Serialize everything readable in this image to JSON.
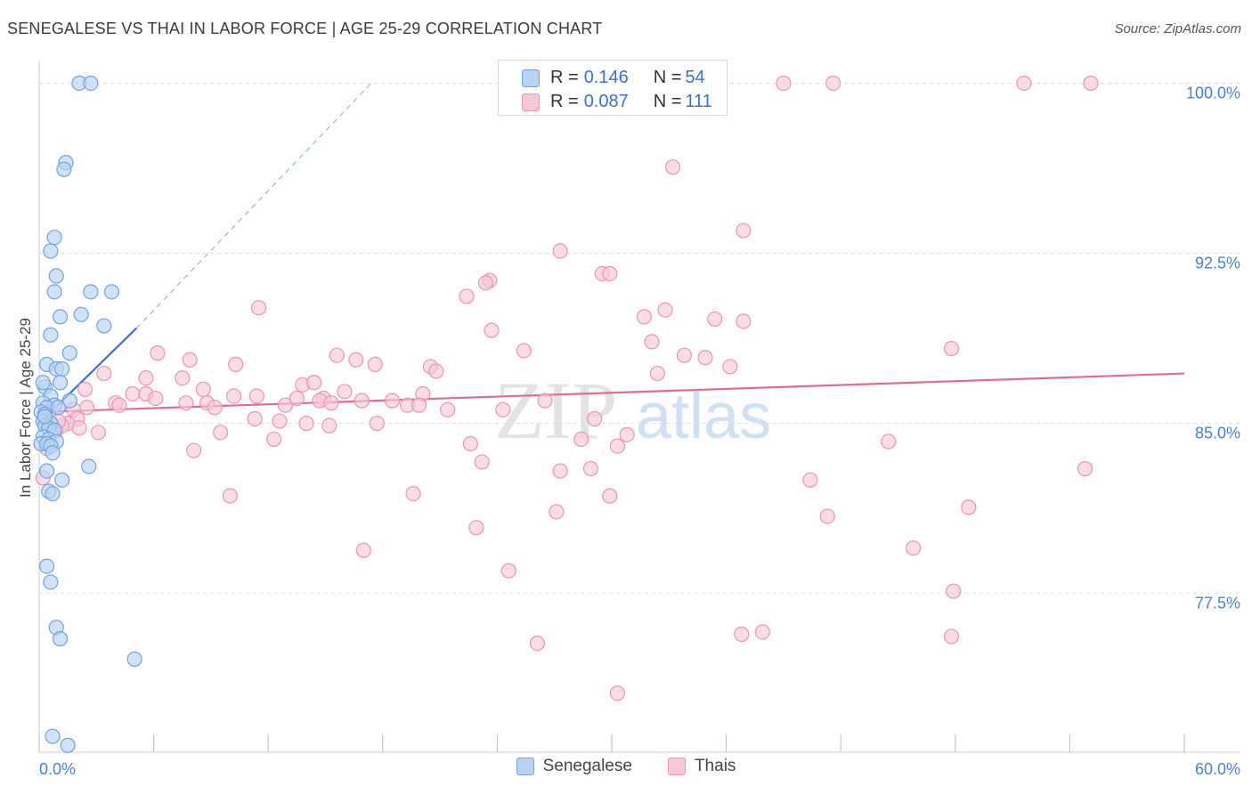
{
  "title": "SENEGALESE VS THAI IN LABOR FORCE | AGE 25-29 CORRELATION CHART",
  "source": "Source: ZipAtlas.com",
  "watermark": {
    "zip": "ZIP",
    "atlas": "atlas"
  },
  "colors": {
    "blue_fill": "#b7d2f2",
    "blue_stroke": "#6fa2e0",
    "blue_line": "#2f6fd6",
    "pink_fill": "#f7c8d8",
    "pink_stroke": "#eb94b2",
    "pink_line": "#e06b95",
    "tick_label": "#4a7fd4"
  },
  "stats_legend": [
    {
      "r_label": "R = ",
      "r_value": "0.146",
      "n_label": "N = ",
      "n_value": "54"
    },
    {
      "r_label": "R = ",
      "r_value": "0.087",
      "n_label": "N = ",
      "n_value": "111"
    }
  ],
  "bottom_legend": [
    "Senegalese",
    "Thais"
  ],
  "chart_data": {
    "type": "scatter",
    "title": "SENEGALESE VS THAI IN LABOR FORCE | AGE 25-29 CORRELATION CHART",
    "xlabel": "",
    "ylabel": "In Labor Force | Age 25-29",
    "xlim": [
      0,
      60
    ],
    "ylim": [
      70.5,
      101
    ],
    "x_tick_labels": [
      "0.0%",
      "60.0%"
    ],
    "y_ticks": [
      77.5,
      85.0,
      92.5,
      100.0
    ],
    "y_tick_labels": [
      "77.5%",
      "85.0%",
      "92.5%",
      "100.0%"
    ],
    "grid": true,
    "series": [
      {
        "name": "Senegalese",
        "r": 0.146,
        "n": 54,
        "trend": {
          "x": [
            0,
            5.1
          ],
          "y": [
            85.0,
            89.2
          ]
        },
        "trend_extension": {
          "x": [
            5.1,
            17.4
          ],
          "y": [
            89.2,
            100.0
          ]
        },
        "points": [
          [
            2.1,
            100.0
          ],
          [
            2.7,
            100.0
          ],
          [
            1.4,
            96.5
          ],
          [
            1.3,
            96.2
          ],
          [
            0.8,
            93.2
          ],
          [
            0.6,
            92.6
          ],
          [
            0.9,
            91.5
          ],
          [
            0.8,
            90.8
          ],
          [
            2.7,
            90.8
          ],
          [
            3.8,
            90.8
          ],
          [
            1.1,
            89.7
          ],
          [
            2.2,
            89.8
          ],
          [
            3.4,
            89.3
          ],
          [
            0.6,
            88.9
          ],
          [
            1.6,
            88.1
          ],
          [
            0.4,
            87.6
          ],
          [
            0.9,
            87.4
          ],
          [
            1.2,
            87.4
          ],
          [
            1.1,
            86.8
          ],
          [
            0.3,
            86.6
          ],
          [
            0.6,
            86.2
          ],
          [
            1.6,
            86.0
          ],
          [
            0.2,
            85.9
          ],
          [
            0.8,
            85.8
          ],
          [
            0.4,
            85.7
          ],
          [
            1.0,
            85.7
          ],
          [
            0.1,
            85.5
          ],
          [
            0.3,
            85.4
          ],
          [
            0.2,
            85.1
          ],
          [
            0.6,
            85.0
          ],
          [
            0.3,
            84.9
          ],
          [
            0.5,
            84.8
          ],
          [
            0.8,
            84.7
          ],
          [
            0.2,
            84.4
          ],
          [
            0.5,
            84.3
          ],
          [
            0.9,
            84.2
          ],
          [
            0.1,
            84.1
          ],
          [
            0.4,
            84.1
          ],
          [
            0.6,
            84.0
          ],
          [
            0.7,
            83.7
          ],
          [
            2.6,
            83.1
          ],
          [
            1.2,
            82.5
          ],
          [
            0.4,
            82.9
          ],
          [
            0.5,
            82.0
          ],
          [
            0.7,
            81.9
          ],
          [
            0.4,
            78.7
          ],
          [
            0.6,
            78.0
          ],
          [
            0.9,
            76.0
          ],
          [
            1.1,
            75.5
          ],
          [
            5.0,
            74.6
          ],
          [
            0.7,
            71.2
          ],
          [
            1.5,
            70.8
          ],
          [
            0.3,
            85.3
          ],
          [
            0.2,
            86.8
          ]
        ]
      },
      {
        "name": "Thais",
        "r": 0.087,
        "n": 111,
        "trend": {
          "x": [
            0,
            60
          ],
          "y": [
            85.5,
            87.2
          ]
        },
        "points": [
          [
            39.0,
            100.0
          ],
          [
            41.6,
            100.0
          ],
          [
            51.6,
            100.0
          ],
          [
            55.1,
            100.0
          ],
          [
            33.2,
            96.3
          ],
          [
            36.9,
            93.5
          ],
          [
            27.3,
            92.6
          ],
          [
            29.5,
            91.6
          ],
          [
            23.6,
            91.3
          ],
          [
            29.9,
            91.6
          ],
          [
            23.4,
            91.2
          ],
          [
            22.4,
            90.6
          ],
          [
            11.5,
            90.1
          ],
          [
            31.7,
            89.7
          ],
          [
            32.8,
            90.0
          ],
          [
            35.4,
            89.6
          ],
          [
            36.9,
            89.5
          ],
          [
            23.7,
            89.1
          ],
          [
            32.1,
            88.6
          ],
          [
            25.4,
            88.2
          ],
          [
            15.6,
            88.0
          ],
          [
            47.8,
            88.3
          ],
          [
            6.2,
            88.1
          ],
          [
            7.9,
            87.8
          ],
          [
            10.3,
            87.6
          ],
          [
            16.6,
            87.8
          ],
          [
            17.6,
            87.6
          ],
          [
            20.5,
            87.5
          ],
          [
            33.8,
            88.0
          ],
          [
            34.9,
            87.9
          ],
          [
            36.2,
            87.5
          ],
          [
            32.4,
            87.2
          ],
          [
            20.8,
            87.3
          ],
          [
            3.4,
            87.2
          ],
          [
            5.6,
            87.0
          ],
          [
            7.5,
            87.0
          ],
          [
            8.6,
            86.5
          ],
          [
            13.8,
            86.7
          ],
          [
            14.4,
            86.8
          ],
          [
            16.0,
            86.4
          ],
          [
            20.1,
            86.3
          ],
          [
            4.9,
            86.3
          ],
          [
            5.6,
            86.3
          ],
          [
            6.1,
            86.1
          ],
          [
            10.2,
            86.2
          ],
          [
            11.4,
            86.2
          ],
          [
            14.9,
            86.1
          ],
          [
            2.4,
            86.5
          ],
          [
            4.0,
            85.9
          ],
          [
            4.2,
            85.8
          ],
          [
            7.7,
            85.9
          ],
          [
            8.8,
            85.9
          ],
          [
            9.2,
            85.7
          ],
          [
            12.9,
            85.8
          ],
          [
            14.7,
            86.0
          ],
          [
            15.3,
            85.9
          ],
          [
            18.5,
            86.0
          ],
          [
            19.3,
            85.8
          ],
          [
            19.9,
            85.8
          ],
          [
            21.4,
            85.6
          ],
          [
            24.3,
            85.6
          ],
          [
            26.5,
            86.0
          ],
          [
            2.5,
            85.7
          ],
          [
            1.8,
            85.6
          ],
          [
            2.0,
            85.2
          ],
          [
            1.5,
            85.0
          ],
          [
            0.9,
            84.7
          ],
          [
            1.2,
            84.9
          ],
          [
            3.1,
            84.6
          ],
          [
            9.5,
            84.6
          ],
          [
            11.3,
            85.2
          ],
          [
            12.6,
            85.1
          ],
          [
            14.0,
            85.0
          ],
          [
            15.2,
            84.9
          ],
          [
            17.7,
            85.0
          ],
          [
            29.1,
            85.2
          ],
          [
            30.8,
            84.5
          ],
          [
            44.5,
            84.2
          ],
          [
            30.3,
            84.0
          ],
          [
            28.4,
            84.3
          ],
          [
            22.6,
            84.1
          ],
          [
            23.2,
            83.3
          ],
          [
            12.3,
            84.3
          ],
          [
            8.1,
            83.8
          ],
          [
            0.4,
            83.9
          ],
          [
            27.3,
            82.9
          ],
          [
            28.9,
            83.0
          ],
          [
            40.4,
            82.5
          ],
          [
            54.8,
            83.0
          ],
          [
            10.0,
            81.8
          ],
          [
            19.6,
            81.9
          ],
          [
            29.9,
            81.8
          ],
          [
            27.1,
            81.1
          ],
          [
            48.7,
            81.3
          ],
          [
            41.3,
            80.9
          ],
          [
            22.9,
            80.4
          ],
          [
            45.8,
            79.5
          ],
          [
            17.0,
            79.4
          ],
          [
            24.6,
            78.5
          ],
          [
            47.9,
            77.6
          ],
          [
            36.8,
            75.7
          ],
          [
            37.9,
            75.8
          ],
          [
            26.1,
            75.3
          ],
          [
            47.8,
            75.6
          ],
          [
            30.3,
            73.1
          ],
          [
            0.2,
            82.6
          ],
          [
            0.6,
            85.5
          ],
          [
            1.0,
            85.1
          ],
          [
            2.1,
            84.8
          ],
          [
            13.5,
            86.1
          ],
          [
            16.9,
            86.0
          ]
        ]
      }
    ]
  }
}
